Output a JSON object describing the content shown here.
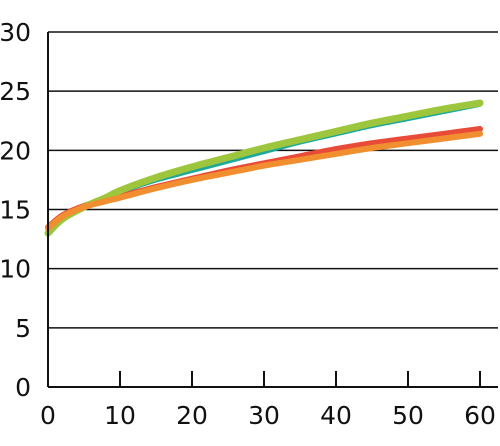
{
  "chart_data": {
    "type": "line",
    "title": "",
    "xlabel": "",
    "ylabel": "",
    "xlim": [
      0,
      60
    ],
    "ylim": [
      0,
      30
    ],
    "xticks": [
      0,
      10,
      20,
      30,
      40,
      50,
      60
    ],
    "yticks": [
      0,
      5,
      10,
      15,
      20,
      25,
      30
    ],
    "grid": "horizontal",
    "legend": "none",
    "x": [
      0,
      2,
      5,
      8,
      10,
      15,
      20,
      25,
      30,
      35,
      40,
      45,
      50,
      55,
      60
    ],
    "series": [
      {
        "color": "#1fa99a",
        "width": 3,
        "values": [
          12.8,
          14.0,
          15.1,
          15.9,
          16.4,
          17.4,
          18.2,
          19.0,
          19.8,
          20.6,
          21.3,
          22.0,
          22.6,
          23.2,
          23.8
        ]
      },
      {
        "color": "#e84b37",
        "width": 6,
        "values": [
          13.5,
          14.5,
          15.3,
          15.8,
          16.1,
          16.9,
          17.6,
          18.3,
          18.9,
          19.5,
          20.1,
          20.6,
          21.0,
          21.4,
          21.8
        ]
      },
      {
        "color": "#9dc63d",
        "width": 7,
        "values": [
          13.0,
          14.2,
          15.2,
          16.0,
          16.6,
          17.7,
          18.6,
          19.4,
          20.2,
          20.9,
          21.6,
          22.3,
          22.9,
          23.5,
          24.0
        ]
      },
      {
        "color": "#f18e2f",
        "width": 6,
        "values": [
          13.4,
          14.4,
          15.2,
          15.7,
          16.0,
          16.8,
          17.5,
          18.1,
          18.7,
          19.2,
          19.7,
          20.2,
          20.6,
          21.0,
          21.4
        ]
      }
    ]
  }
}
